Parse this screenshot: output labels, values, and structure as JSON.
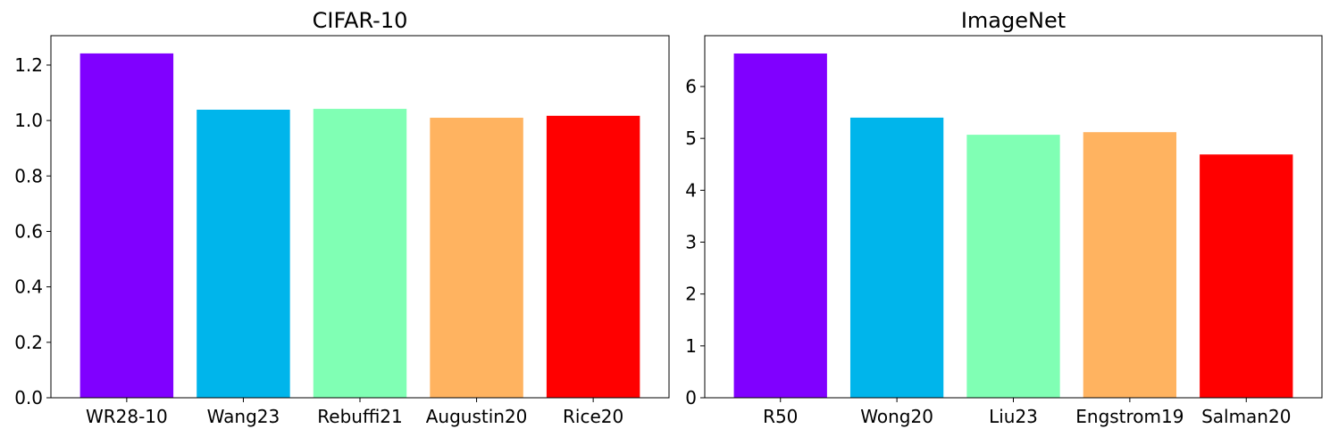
{
  "chart_data": [
    {
      "type": "bar",
      "title": "CIFAR-10",
      "categories": [
        "WR28-10",
        "Wang23",
        "Rebuffi21",
        "Augustin20",
        "Rice20"
      ],
      "values": [
        1.242,
        1.039,
        1.042,
        1.01,
        1.017
      ],
      "colors": [
        "#8000ff",
        "#00b5eb",
        "#80ffb4",
        "#ffb360",
        "#ff0000"
      ],
      "ylim": [
        0,
        1.306
      ],
      "yticks": [
        {
          "value": 0,
          "label": "0.0"
        },
        0.2,
        0.4,
        0.6,
        0.8,
        {
          "value": 1,
          "label": "1.0"
        },
        1.2
      ]
    },
    {
      "type": "bar",
      "title": "ImageNet",
      "categories": [
        "R50",
        "Wong20",
        "Liu23",
        "Engstrom19",
        "Salman20"
      ],
      "values": [
        6.636,
        5.4,
        5.07,
        5.12,
        4.69
      ],
      "colors": [
        "#8000ff",
        "#00b5eb",
        "#80ffb4",
        "#ffb360",
        "#ff0000"
      ],
      "ylim": [
        0,
        6.98
      ],
      "yticks": [
        0,
        1,
        2,
        3,
        4,
        5,
        6
      ]
    }
  ]
}
